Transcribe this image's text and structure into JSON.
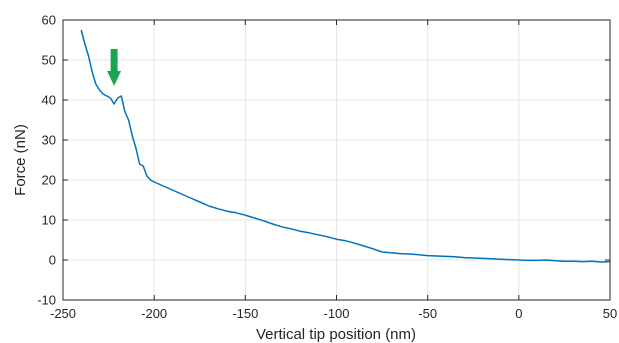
{
  "chart_data": {
    "type": "line",
    "xlabel": "Vertical tip position (nm)",
    "ylabel": "Force (nN)",
    "xlim": [
      -250,
      50
    ],
    "ylim": [
      -10,
      60
    ],
    "xticks": [
      -250,
      -200,
      -150,
      -100,
      -50,
      0,
      50
    ],
    "yticks": [
      -10,
      0,
      10,
      20,
      30,
      40,
      50,
      60
    ],
    "grid": true,
    "series": [
      {
        "color": "#0072bd",
        "x": [
          -240,
          -238,
          -236,
          -234,
          -232,
          -230,
          -228,
          -226,
          -224,
          -222,
          -220,
          -218,
          -216,
          -214,
          -212,
          -210,
          -208,
          -206,
          -204,
          -202,
          -200,
          -195,
          -190,
          -185,
          -180,
          -175,
          -170,
          -165,
          -160,
          -155,
          -150,
          -145,
          -140,
          -135,
          -130,
          -125,
          -120,
          -115,
          -110,
          -105,
          -100,
          -95,
          -90,
          -85,
          -80,
          -75,
          -70,
          -65,
          -60,
          -55,
          -50,
          -45,
          -40,
          -35,
          -30,
          -25,
          -20,
          -15,
          -10,
          -5,
          0,
          5,
          10,
          15,
          20,
          25,
          30,
          35,
          40,
          45,
          50
        ],
        "y": [
          57.5,
          54,
          51,
          47,
          44,
          42.5,
          41.5,
          41,
          40.5,
          39,
          40.5,
          41,
          37,
          35,
          31,
          28,
          24,
          23.5,
          21,
          20,
          19.5,
          18.5,
          17.5,
          16.5,
          15.5,
          14.5,
          13.5,
          12.8,
          12.2,
          11.8,
          11.2,
          10.5,
          9.8,
          9,
          8.3,
          7.8,
          7.2,
          6.8,
          6.3,
          5.8,
          5.2,
          4.8,
          4.2,
          3.5,
          2.8,
          2,
          1.8,
          1.6,
          1.5,
          1.3,
          1.1,
          1,
          0.9,
          0.8,
          0.6,
          0.5,
          0.4,
          0.3,
          0.2,
          0.1,
          0,
          -0.1,
          -0.1,
          0,
          -0.2,
          -0.3,
          -0.3,
          -0.4,
          -0.3,
          -0.5,
          -0.4
        ]
      }
    ],
    "annotations": [
      {
        "type": "arrow",
        "color": "#1aa551",
        "x": -222,
        "y": 43.5
      }
    ]
  }
}
